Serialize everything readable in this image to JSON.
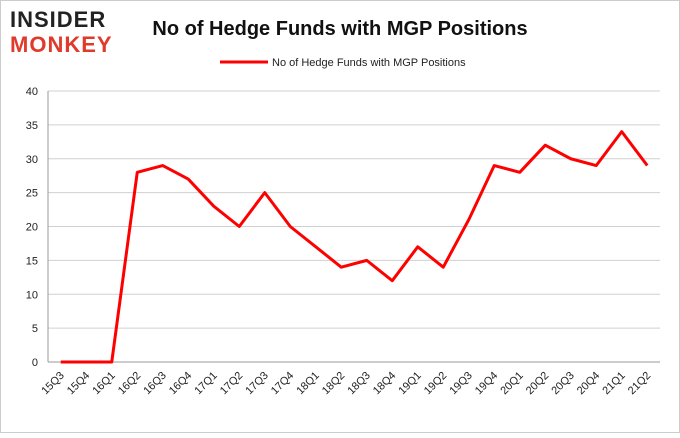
{
  "logo": {
    "top": "INSIDER",
    "bottom": "MONKEY"
  },
  "chart_data": {
    "type": "line",
    "title": "No of Hedge Funds with MGP Positions",
    "categories": [
      "15Q3",
      "15Q4",
      "16Q1",
      "16Q2",
      "16Q3",
      "16Q4",
      "17Q1",
      "17Q2",
      "17Q3",
      "17Q4",
      "18Q1",
      "18Q2",
      "18Q3",
      "18Q4",
      "19Q1",
      "19Q2",
      "19Q3",
      "19Q4",
      "20Q1",
      "20Q2",
      "20Q3",
      "20Q4",
      "21Q1",
      "21Q2"
    ],
    "series": [
      {
        "name": "No of Hedge Funds with MGP Positions",
        "color": "#ff0000",
        "values": [
          0,
          0,
          0,
          28,
          29,
          27,
          23,
          20,
          25,
          20,
          17,
          14,
          15,
          12,
          17,
          14,
          21,
          29,
          28,
          32,
          30,
          29,
          34,
          29
        ]
      }
    ],
    "ylim": [
      0,
      40
    ],
    "yticks": [
      0,
      5,
      10,
      15,
      20,
      25,
      30,
      35,
      40
    ],
    "grid": true,
    "legend": "top"
  }
}
